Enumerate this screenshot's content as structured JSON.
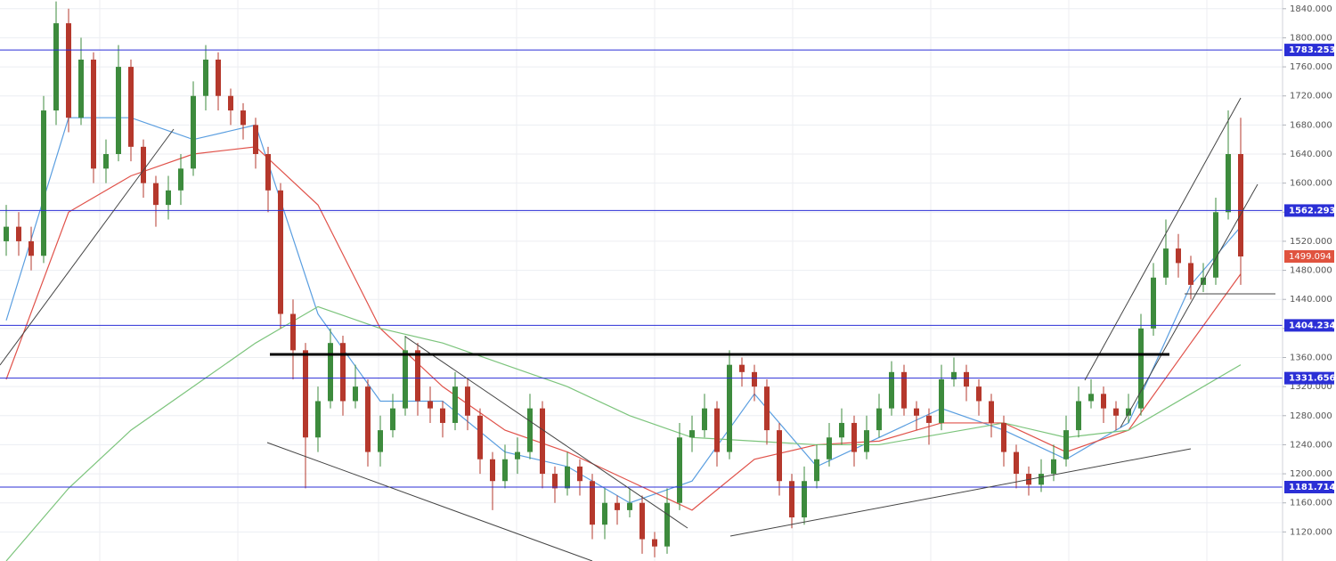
{
  "chart_data": {
    "type": "candlestick",
    "ylim": [
      1080,
      1852
    ],
    "yticks": [
      {
        "value": 1120,
        "label": "1120.000"
      },
      {
        "value": 1160,
        "label": "1160.000"
      },
      {
        "value": 1200,
        "label": "1200.000"
      },
      {
        "value": 1240,
        "label": "1240.000"
      },
      {
        "value": 1280,
        "label": "1280.000"
      },
      {
        "value": 1320,
        "label": "1320.000"
      },
      {
        "value": 1360,
        "label": "1360.000"
      },
      {
        "value": 1400,
        "label": "1400.000"
      },
      {
        "value": 1440,
        "label": "1440.000"
      },
      {
        "value": 1480,
        "label": "1480.000"
      },
      {
        "value": 1520,
        "label": "1520.000"
      },
      {
        "value": 1560,
        "label": "1560.000"
      },
      {
        "value": 1600,
        "label": "1600.000"
      },
      {
        "value": 1640,
        "label": "1640.000"
      },
      {
        "value": 1680,
        "label": "1680.000"
      },
      {
        "value": 1720,
        "label": "1720.000"
      },
      {
        "value": 1760,
        "label": "1760.000"
      },
      {
        "value": 1800,
        "label": "1800.000"
      },
      {
        "value": 1840,
        "label": "1840.000"
      }
    ],
    "grid": true,
    "up_color": "#3d8b3d",
    "down_color": "#b5382c",
    "levels": [
      1783.253,
      1562.293,
      1404.234,
      1331.656,
      1181.714
    ],
    "level_color": "#2b2fd6",
    "last_price": 1499.094,
    "last_price_color": "#e0533f",
    "candles": [
      [
        1520,
        1570,
        1500,
        1540
      ],
      [
        1540,
        1560,
        1500,
        1520
      ],
      [
        1520,
        1540,
        1480,
        1500
      ],
      [
        1500,
        1720,
        1490,
        1700
      ],
      [
        1700,
        1850,
        1680,
        1820
      ],
      [
        1820,
        1840,
        1670,
        1690
      ],
      [
        1690,
        1800,
        1680,
        1770
      ],
      [
        1770,
        1780,
        1600,
        1620
      ],
      [
        1620,
        1660,
        1600,
        1640
      ],
      [
        1640,
        1790,
        1630,
        1760
      ],
      [
        1760,
        1770,
        1630,
        1650
      ],
      [
        1650,
        1660,
        1580,
        1600
      ],
      [
        1600,
        1610,
        1540,
        1570
      ],
      [
        1570,
        1610,
        1550,
        1590
      ],
      [
        1590,
        1640,
        1570,
        1620
      ],
      [
        1620,
        1740,
        1610,
        1720
      ],
      [
        1720,
        1790,
        1700,
        1770
      ],
      [
        1770,
        1780,
        1700,
        1720
      ],
      [
        1720,
        1730,
        1680,
        1700
      ],
      [
        1700,
        1710,
        1660,
        1680
      ],
      [
        1680,
        1690,
        1620,
        1640
      ],
      [
        1640,
        1650,
        1560,
        1590
      ],
      [
        1590,
        1600,
        1400,
        1420
      ],
      [
        1420,
        1440,
        1330,
        1370
      ],
      [
        1370,
        1380,
        1180,
        1250
      ],
      [
        1250,
        1320,
        1230,
        1300
      ],
      [
        1300,
        1400,
        1290,
        1380
      ],
      [
        1380,
        1390,
        1280,
        1300
      ],
      [
        1300,
        1350,
        1290,
        1320
      ],
      [
        1320,
        1330,
        1210,
        1230
      ],
      [
        1230,
        1280,
        1210,
        1260
      ],
      [
        1260,
        1310,
        1250,
        1290
      ],
      [
        1290,
        1390,
        1280,
        1370
      ],
      [
        1370,
        1380,
        1280,
        1300
      ],
      [
        1300,
        1320,
        1270,
        1290
      ],
      [
        1290,
        1300,
        1250,
        1270
      ],
      [
        1270,
        1340,
        1260,
        1320
      ],
      [
        1320,
        1330,
        1260,
        1280
      ],
      [
        1280,
        1290,
        1200,
        1220
      ],
      [
        1220,
        1230,
        1150,
        1190
      ],
      [
        1190,
        1240,
        1180,
        1220
      ],
      [
        1220,
        1250,
        1200,
        1230
      ],
      [
        1230,
        1310,
        1220,
        1290
      ],
      [
        1290,
        1300,
        1180,
        1200
      ],
      [
        1200,
        1210,
        1160,
        1180
      ],
      [
        1180,
        1230,
        1170,
        1210
      ],
      [
        1210,
        1220,
        1170,
        1190
      ],
      [
        1190,
        1200,
        1110,
        1130
      ],
      [
        1130,
        1180,
        1110,
        1160
      ],
      [
        1160,
        1170,
        1130,
        1150
      ],
      [
        1150,
        1180,
        1140,
        1160
      ],
      [
        1160,
        1170,
        1090,
        1110
      ],
      [
        1110,
        1120,
        1085,
        1100
      ],
      [
        1100,
        1180,
        1090,
        1160
      ],
      [
        1160,
        1270,
        1150,
        1250
      ],
      [
        1250,
        1280,
        1230,
        1260
      ],
      [
        1260,
        1310,
        1250,
        1290
      ],
      [
        1290,
        1300,
        1210,
        1230
      ],
      [
        1230,
        1370,
        1220,
        1350
      ],
      [
        1350,
        1360,
        1320,
        1340
      ],
      [
        1340,
        1350,
        1300,
        1320
      ],
      [
        1320,
        1330,
        1240,
        1260
      ],
      [
        1260,
        1270,
        1170,
        1190
      ],
      [
        1190,
        1200,
        1125,
        1140
      ],
      [
        1140,
        1210,
        1130,
        1190
      ],
      [
        1190,
        1240,
        1180,
        1220
      ],
      [
        1220,
        1270,
        1210,
        1250
      ],
      [
        1250,
        1290,
        1240,
        1270
      ],
      [
        1270,
        1280,
        1210,
        1230
      ],
      [
        1230,
        1280,
        1220,
        1260
      ],
      [
        1260,
        1310,
        1250,
        1290
      ],
      [
        1290,
        1355,
        1280,
        1340
      ],
      [
        1340,
        1350,
        1280,
        1290
      ],
      [
        1290,
        1300,
        1260,
        1280
      ],
      [
        1280,
        1290,
        1240,
        1270
      ],
      [
        1270,
        1350,
        1260,
        1330
      ],
      [
        1330,
        1360,
        1320,
        1340
      ],
      [
        1340,
        1350,
        1300,
        1320
      ],
      [
        1320,
        1330,
        1280,
        1300
      ],
      [
        1300,
        1310,
        1250,
        1270
      ],
      [
        1270,
        1280,
        1210,
        1230
      ],
      [
        1230,
        1240,
        1180,
        1200
      ],
      [
        1200,
        1210,
        1170,
        1185
      ],
      [
        1185,
        1220,
        1175,
        1200
      ],
      [
        1200,
        1240,
        1190,
        1220
      ],
      [
        1220,
        1280,
        1210,
        1260
      ],
      [
        1260,
        1320,
        1250,
        1300
      ],
      [
        1300,
        1330,
        1290,
        1310
      ],
      [
        1310,
        1320,
        1270,
        1290
      ],
      [
        1290,
        1300,
        1260,
        1280
      ],
      [
        1280,
        1310,
        1270,
        1290
      ],
      [
        1290,
        1420,
        1280,
        1400
      ],
      [
        1400,
        1490,
        1390,
        1470
      ],
      [
        1470,
        1550,
        1460,
        1510
      ],
      [
        1510,
        1530,
        1470,
        1490
      ],
      [
        1490,
        1500,
        1440,
        1460
      ],
      [
        1460,
        1490,
        1450,
        1470
      ],
      [
        1470,
        1580,
        1460,
        1560
      ],
      [
        1560,
        1700,
        1550,
        1640
      ],
      [
        1640,
        1690,
        1460,
        1499.094
      ]
    ],
    "ma_index": [
      0,
      5,
      10,
      15,
      20,
      25,
      30,
      35,
      40,
      45,
      50,
      55,
      60,
      65,
      70,
      75,
      80,
      85,
      90,
      95,
      99
    ],
    "series": [
      {
        "color": "#5a9ee0",
        "values": [
          1411,
          1690,
          1690,
          1660,
          1680,
          1420,
          1300,
          1300,
          1230,
          1210,
          1160,
          1190,
          1310,
          1210,
          1250,
          1290,
          1260,
          1220,
          1270,
          1460,
          1540
        ]
      },
      {
        "color": "#e0524a",
        "values": [
          1330,
          1560,
          1610,
          1640,
          1650,
          1570,
          1400,
          1320,
          1260,
          1230,
          1190,
          1150,
          1220,
          1240,
          1245,
          1270,
          1270,
          1230,
          1260,
          1380,
          1475
        ]
      },
      {
        "color": "#7cc47c",
        "values": [
          1080,
          1180,
          1260,
          1320,
          1380,
          1430,
          1400,
          1380,
          1350,
          1320,
          1280,
          1250,
          1245,
          1240,
          1240,
          1255,
          1270,
          1250,
          1260,
          1310,
          1350
        ]
      }
    ]
  }
}
